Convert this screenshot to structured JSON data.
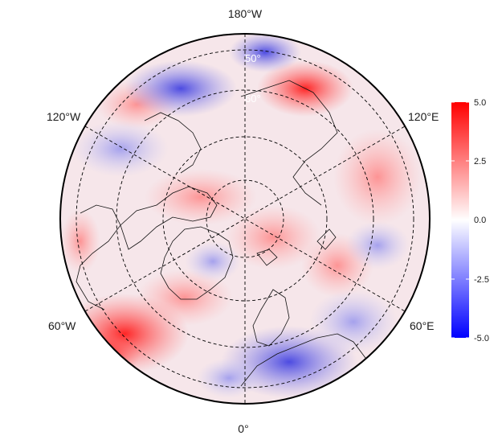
{
  "map": {
    "projection": "north-polar-stereographic",
    "longitude_labels": {
      "top": "180°W",
      "bottom": "0°",
      "upper_left": "120°W",
      "upper_right": "120°E",
      "lower_left": "60°W",
      "lower_right": "60°E"
    },
    "latitude_labels": [
      "50°",
      "60°"
    ]
  },
  "colorbar": {
    "ticks": [
      "5.0",
      "2.5",
      "0.0",
      "-2.5",
      "-5.0"
    ],
    "max": 5.0,
    "min": -5.0,
    "colors": {
      "high": "#ff0000",
      "mid": "#ffffff",
      "low": "#0000ff"
    }
  }
}
